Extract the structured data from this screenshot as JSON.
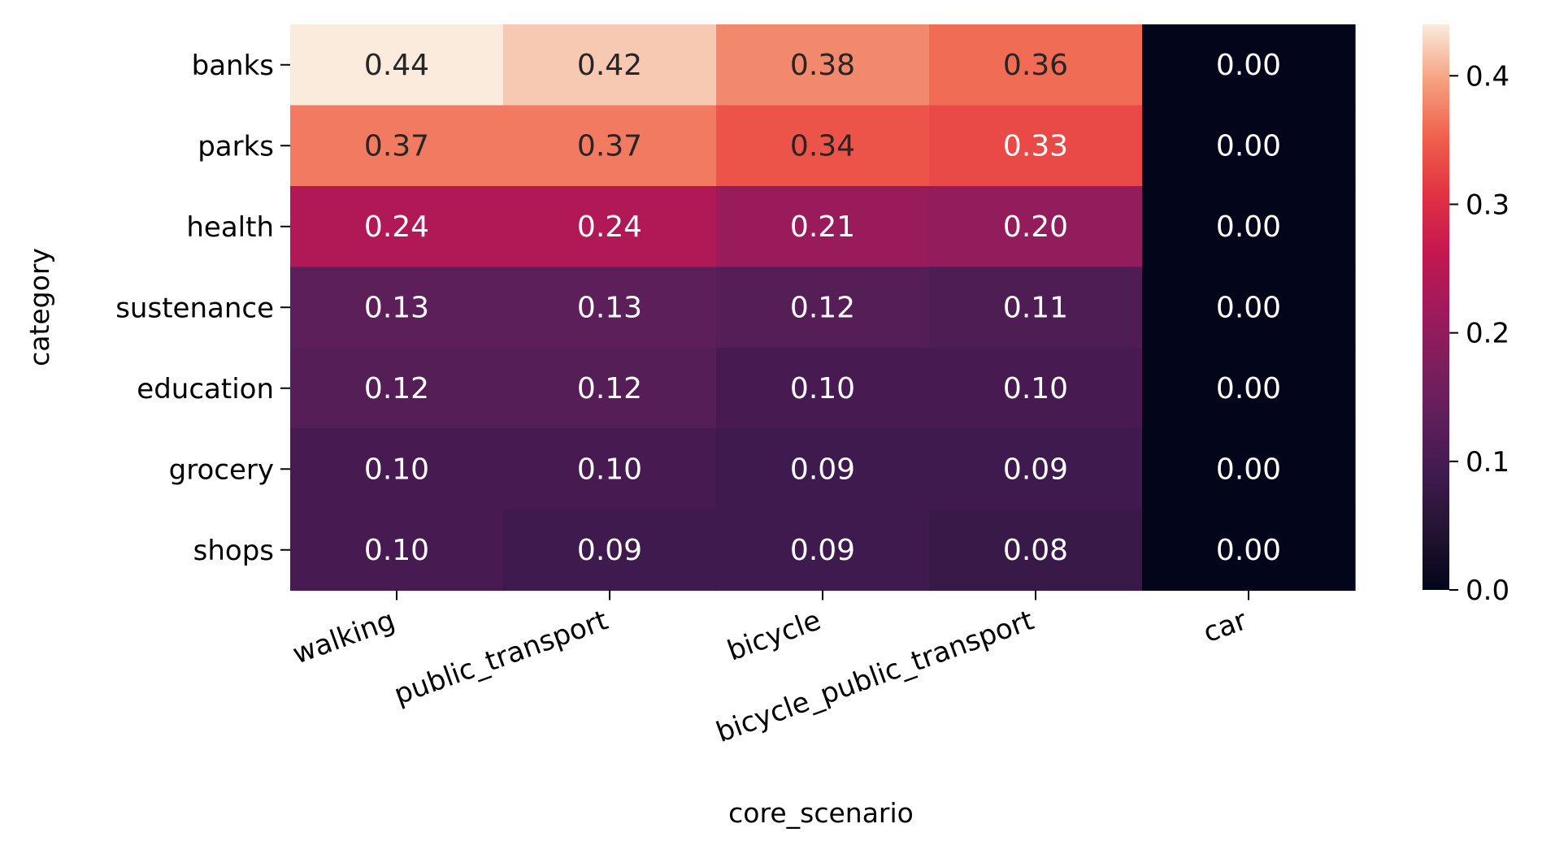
{
  "chart_data": {
    "type": "heatmap",
    "title": "",
    "xlabel": "core_scenario",
    "ylabel": "category",
    "x_categories": [
      "walking",
      "public_transport",
      "bicycle",
      "bicycle_public_transport",
      "car"
    ],
    "y_categories": [
      "banks",
      "parks",
      "health",
      "sustenance",
      "education",
      "grocery",
      "shops"
    ],
    "values": [
      [
        0.44,
        0.42,
        0.38,
        0.36,
        0.0
      ],
      [
        0.37,
        0.37,
        0.34,
        0.33,
        0.0
      ],
      [
        0.24,
        0.24,
        0.21,
        0.2,
        0.0
      ],
      [
        0.13,
        0.13,
        0.12,
        0.11,
        0.0
      ],
      [
        0.12,
        0.12,
        0.1,
        0.1,
        0.0
      ],
      [
        0.1,
        0.1,
        0.09,
        0.09,
        0.0
      ],
      [
        0.1,
        0.09,
        0.09,
        0.08,
        0.0
      ]
    ],
    "value_format": "0.00",
    "colormap": "rocket",
    "colorbar": {
      "range": [
        0.0,
        0.44
      ],
      "ticks": [
        0.0,
        0.1,
        0.2,
        0.3,
        0.4
      ],
      "tick_labels": [
        "0.0",
        "0.1",
        "0.2",
        "0.3",
        "0.4"
      ]
    },
    "annotation_colors": {
      "light_cell": "#262626",
      "dark_cell": "#ffffff"
    }
  }
}
